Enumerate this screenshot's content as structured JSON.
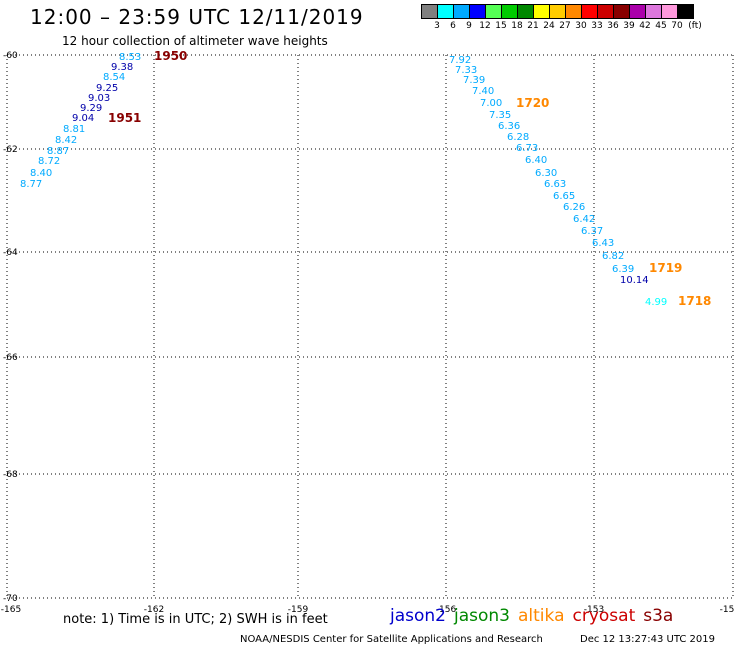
{
  "header": {
    "title": "12:00 – 23:59 UTC 12/11/2019",
    "subtitle": "12 hour collection of altimeter wave heights"
  },
  "legend": {
    "unit": "(ft)",
    "swatches": [
      {
        "color": "#808080",
        "label": "3"
      },
      {
        "color": "#00ffff",
        "label": "6"
      },
      {
        "color": "#00aaff",
        "label": "9"
      },
      {
        "color": "#0000ff",
        "label": "12"
      },
      {
        "color": "#55ff55",
        "label": "15"
      },
      {
        "color": "#00cc00",
        "label": "18"
      },
      {
        "color": "#008800",
        "label": "21"
      },
      {
        "color": "#ffff00",
        "label": "24"
      },
      {
        "color": "#ffcc00",
        "label": "27"
      },
      {
        "color": "#ff8800",
        "label": "30"
      },
      {
        "color": "#ff0000",
        "label": "33"
      },
      {
        "color": "#cc0000",
        "label": "36"
      },
      {
        "color": "#880000",
        "label": "39"
      },
      {
        "color": "#aa00aa",
        "label": "42"
      },
      {
        "color": "#dd77dd",
        "label": "45"
      },
      {
        "color": "#ff99dd",
        "label": "70"
      },
      {
        "color": "#000000",
        "label": ""
      }
    ]
  },
  "map": {
    "lat_labels": [
      "-60",
      "-62",
      "-64",
      "-66",
      "-68",
      "-70"
    ],
    "lon_labels": [
      "-165",
      "-162",
      "-159",
      "-156",
      "-153",
      "-15"
    ]
  },
  "track_labels": [
    {
      "text": "1950",
      "color": "#880000"
    },
    {
      "text": "1951",
      "color": "#880000"
    },
    {
      "text": "1720",
      "color": "#ff8800"
    },
    {
      "text": "1719",
      "color": "#ff8800"
    },
    {
      "text": "1718",
      "color": "#ff8800"
    }
  ],
  "west_track": [
    {
      "value": "8.53",
      "color": "#00aaff"
    },
    {
      "value": "9.38",
      "color": "#0000aa"
    },
    {
      "value": "8.54",
      "color": "#00aaff"
    },
    {
      "value": "9.25",
      "color": "#0000aa"
    },
    {
      "value": "9.03",
      "color": "#0000aa"
    },
    {
      "value": "9.29",
      "color": "#0000aa"
    },
    {
      "value": "9.04",
      "color": "#0000aa"
    },
    {
      "value": "8.81",
      "color": "#00aaff"
    },
    {
      "value": "8.42",
      "color": "#00aaff"
    },
    {
      "value": "8.87",
      "color": "#00aaff"
    },
    {
      "value": "8.72",
      "color": "#00aaff"
    },
    {
      "value": "8.40",
      "color": "#00aaff"
    },
    {
      "value": "8.77",
      "color": "#00aaff"
    }
  ],
  "east_track": [
    {
      "value": "7.92",
      "color": "#00aaff"
    },
    {
      "value": "7.33",
      "color": "#00aaff"
    },
    {
      "value": "7.39",
      "color": "#00aaff"
    },
    {
      "value": "7.40",
      "color": "#00aaff"
    },
    {
      "value": "7.00",
      "color": "#00aaff"
    },
    {
      "value": "7.35",
      "color": "#00aaff"
    },
    {
      "value": "6.36",
      "color": "#00aaff"
    },
    {
      "value": "6.28",
      "color": "#00aaff"
    },
    {
      "value": "6.73",
      "color": "#00aaff"
    },
    {
      "value": "6.40",
      "color": "#00aaff"
    },
    {
      "value": "6.30",
      "color": "#00aaff"
    },
    {
      "value": "6.63",
      "color": "#00aaff"
    },
    {
      "value": "6.65",
      "color": "#00aaff"
    },
    {
      "value": "6.26",
      "color": "#00aaff"
    },
    {
      "value": "6.42",
      "color": "#00aaff"
    },
    {
      "value": "6.37",
      "color": "#00aaff"
    },
    {
      "value": "6.43",
      "color": "#00aaff"
    },
    {
      "value": "6.82",
      "color": "#00aaff"
    },
    {
      "value": "6.39",
      "color": "#00aaff"
    },
    {
      "value": "10.14",
      "color": "#0000aa"
    },
    {
      "value": "4.99",
      "color": "#00ffff"
    }
  ],
  "footer": {
    "note": "note: 1) Time is in UTC; 2) SWH is in feet",
    "satellites": [
      {
        "name": "jason2",
        "color": "#0000cc"
      },
      {
        "name": "jason3",
        "color": "#008800"
      },
      {
        "name": "altika",
        "color": "#ff8800"
      },
      {
        "name": "cryosat",
        "color": "#cc0000"
      },
      {
        "name": "s3a",
        "color": "#880000"
      }
    ],
    "credit": "NOAA/NESDIS Center for Satellite Applications and Research",
    "timestamp": "Dec 12 13:27:43 UTC 2019"
  }
}
